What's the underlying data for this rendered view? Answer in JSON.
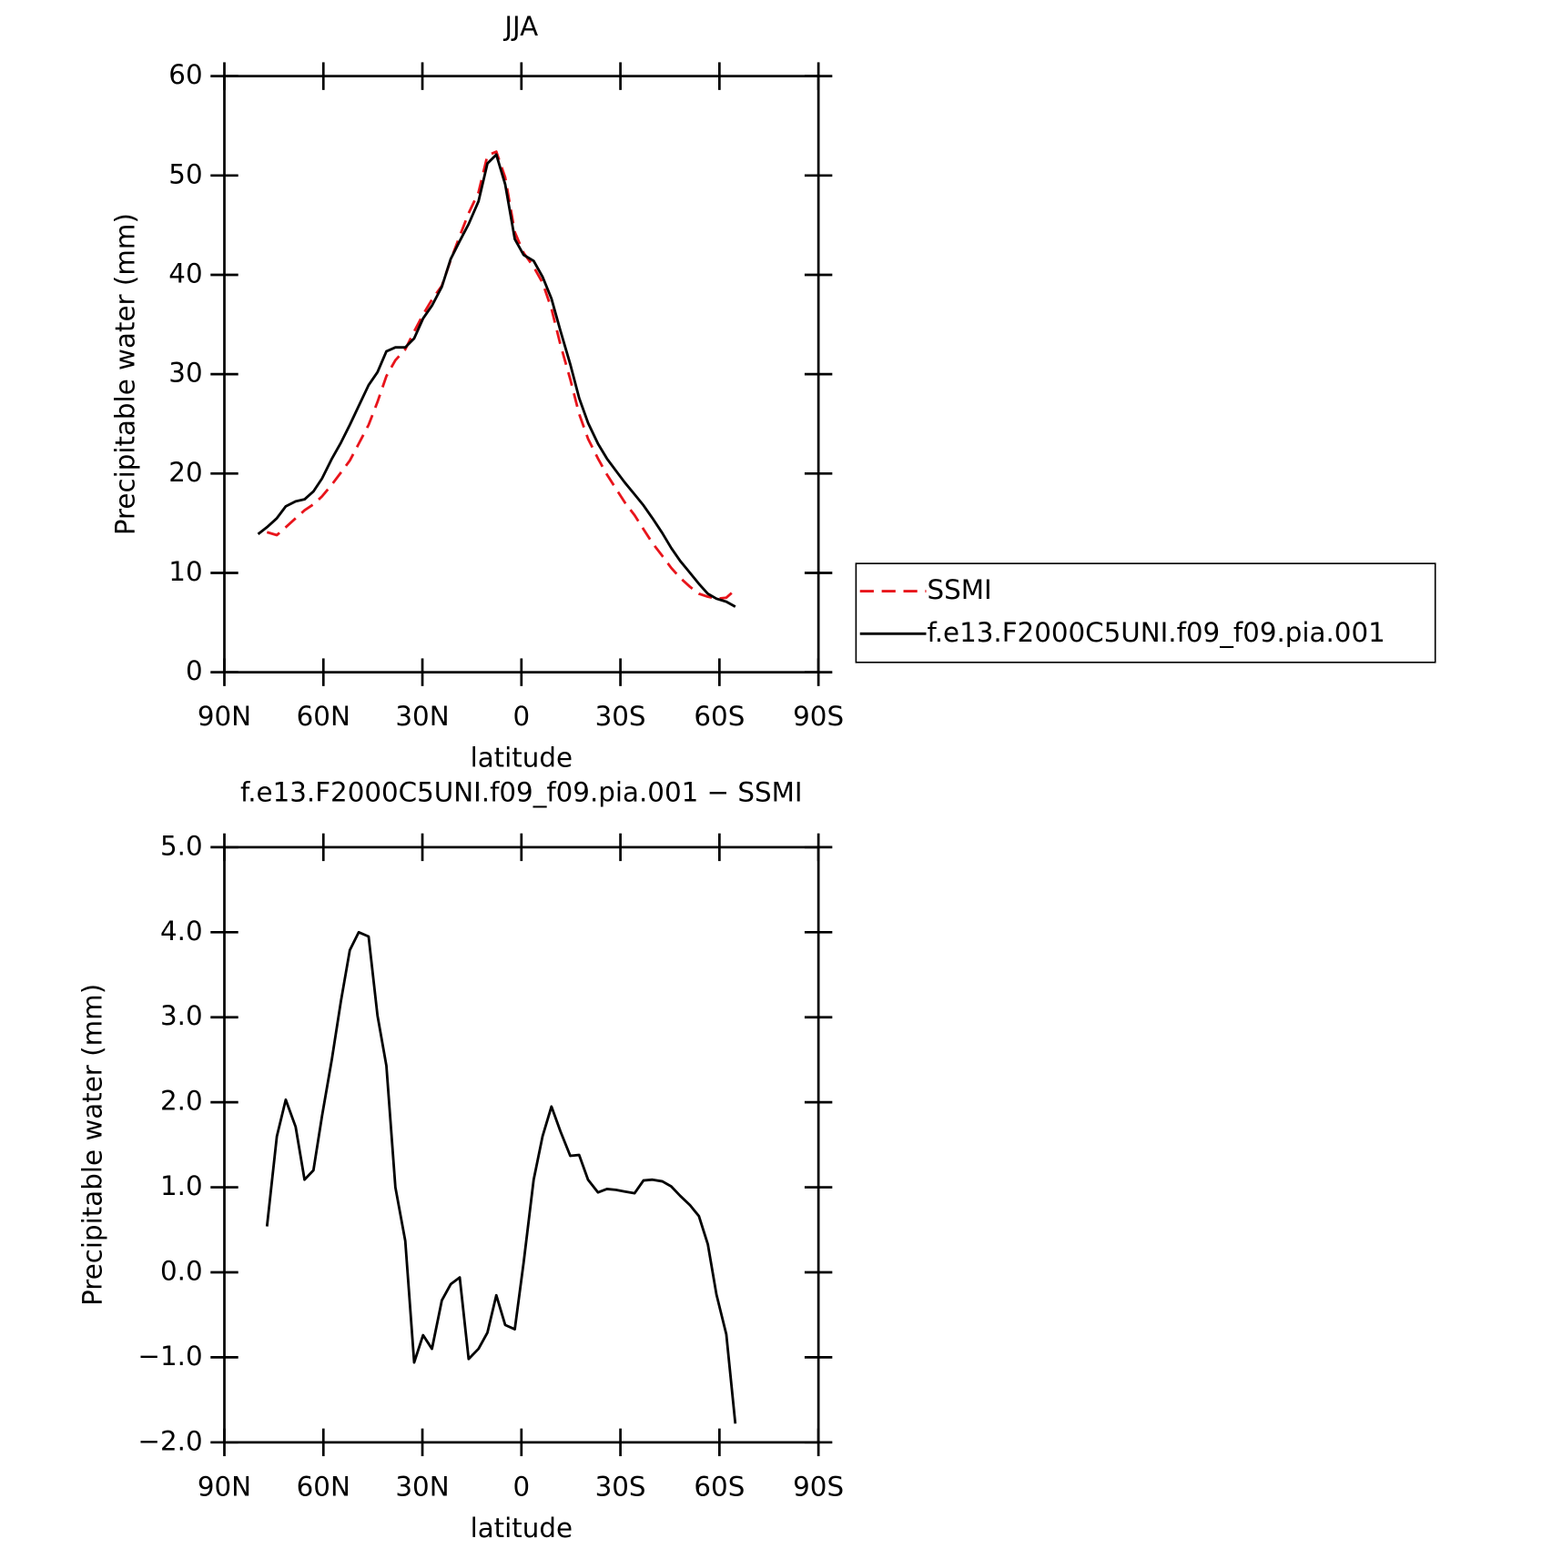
{
  "chart_data": [
    {
      "type": "line",
      "title": "JJA",
      "xlabel": "latitude",
      "ylabel": "Precipitable water (mm)",
      "xlim": [
        90,
        -90
      ],
      "xticks": [
        {
          "value": 90,
          "label": "90N"
        },
        {
          "value": 60,
          "label": "60N"
        },
        {
          "value": 30,
          "label": "30N"
        },
        0,
        {
          "value": -30,
          "label": "30S"
        },
        {
          "value": -60,
          "label": "60S"
        },
        {
          "value": -90,
          "label": "90S"
        }
      ],
      "ylim": [
        0,
        60
      ],
      "yticks": [
        0,
        10,
        20,
        30,
        40,
        50,
        60
      ],
      "legend": "right",
      "x": [
        79.8,
        77.1,
        74.1,
        71.4,
        68.4,
        65.7,
        63.0,
        60.4,
        57.4,
        54.7,
        52.0,
        49.3,
        46.3,
        43.6,
        40.9,
        38.2,
        35.2,
        32.5,
        29.8,
        27.1,
        24.1,
        21.4,
        18.7,
        16.0,
        13.0,
        10.3,
        7.6,
        4.9,
        2.0,
        -0.7,
        -3.7,
        -6.4,
        -9.1,
        -11.8,
        -14.8,
        -17.5,
        -20.2,
        -23.2,
        -25.9,
        -28.6,
        -31.3,
        -34.3,
        -37.0,
        -39.7,
        -42.7,
        -45.4,
        -48.1,
        -51.1,
        -53.8,
        -56.5,
        -59.1,
        -62.1,
        -64.8
      ],
      "series": [
        {
          "name": "SSMI",
          "color": "#e8141b",
          "dashed": true,
          "values": [
            null,
            14.1,
            13.8,
            14.6,
            15.5,
            16.3,
            16.9,
            17.7,
            18.9,
            20.1,
            21.3,
            23.0,
            24.9,
            27.2,
            29.8,
            31.4,
            32.5,
            34.3,
            36.0,
            37.5,
            38.9,
            41.5,
            43.9,
            46.2,
            48.3,
            52.0,
            52.4,
            49.8,
            44.3,
            42.2,
            40.8,
            39.2,
            36.6,
            33.0,
            29.5,
            26.0,
            23.5,
            21.5,
            19.9,
            18.5,
            17.1,
            15.8,
            14.4,
            13.0,
            11.7,
            10.5,
            9.5,
            8.6,
            7.9,
            7.6,
            7.4,
            7.5,
            8.3
          ]
        },
        {
          "name": "f.e13.F2000C5UNI.f09_f09.pia.001",
          "color": "#000000",
          "dashed": false,
          "values": [
            13.9,
            14.6,
            15.5,
            16.7,
            17.2,
            17.4,
            18.2,
            19.5,
            21.5,
            23.1,
            24.9,
            26.8,
            28.9,
            30.2,
            32.3,
            32.7,
            32.7,
            33.6,
            35.6,
            36.9,
            38.8,
            41.6,
            43.4,
            45.1,
            47.4,
            51.2,
            52.1,
            49.1,
            43.6,
            42.0,
            41.4,
            39.8,
            37.6,
            34.4,
            31.0,
            27.6,
            25.1,
            23.0,
            21.5,
            20.3,
            19.1,
            17.9,
            16.8,
            15.5,
            14.0,
            12.5,
            11.2,
            10.0,
            8.9,
            7.9,
            7.4,
            7.1,
            6.6
          ]
        }
      ]
    },
    {
      "type": "line",
      "title": "f.e13.F2000C5UNI.f09_f09.pia.001  −  SSMI",
      "xlabel": "latitude",
      "ylabel": "Precipitable water (mm)",
      "xlim": [
        90,
        -90
      ],
      "xticks": [
        {
          "value": 90,
          "label": "90N"
        },
        {
          "value": 60,
          "label": "60N"
        },
        {
          "value": 30,
          "label": "30N"
        },
        0,
        {
          "value": -30,
          "label": "30S"
        },
        {
          "value": -60,
          "label": "60S"
        },
        {
          "value": -90,
          "label": "90S"
        }
      ],
      "ylim": [
        -2,
        5
      ],
      "yticks": [
        {
          "value": -2,
          "label": "−2.0"
        },
        {
          "value": -1,
          "label": "−1.0"
        },
        {
          "value": 0,
          "label": "0.0"
        },
        {
          "value": 1,
          "label": "1.0"
        },
        {
          "value": 2,
          "label": "2.0"
        },
        {
          "value": 3,
          "label": "3.0"
        },
        {
          "value": 4,
          "label": "4.0"
        },
        {
          "value": 5,
          "label": "5.0"
        }
      ],
      "x": [
        77.1,
        74.1,
        71.4,
        68.4,
        65.7,
        63.0,
        60.4,
        57.4,
        54.7,
        52.0,
        49.3,
        46.3,
        43.6,
        40.9,
        38.2,
        35.2,
        32.5,
        29.8,
        27.1,
        24.1,
        21.4,
        18.7,
        16.0,
        13.0,
        10.3,
        7.6,
        4.9,
        2.0,
        -0.7,
        -3.7,
        -6.4,
        -9.1,
        -11.8,
        -14.8,
        -17.5,
        -20.2,
        -23.2,
        -25.9,
        -28.6,
        -31.3,
        -34.3,
        -37.0,
        -39.7,
        -42.7,
        -45.4,
        -48.1,
        -51.1,
        -53.8,
        -56.5,
        -59.1,
        -62.1,
        -64.8
      ],
      "series": [
        {
          "color": "#000000",
          "dashed": false,
          "values": [
            0.54,
            1.6,
            2.03,
            1.71,
            1.09,
            1.2,
            1.84,
            2.51,
            3.19,
            3.79,
            4.0,
            3.95,
            3.02,
            2.43,
            1.0,
            0.37,
            -1.06,
            -0.74,
            -0.9,
            -0.33,
            -0.14,
            -0.06,
            -1.02,
            -0.9,
            -0.71,
            -0.27,
            -0.62,
            -0.67,
            0.12,
            1.09,
            1.6,
            1.95,
            1.66,
            1.37,
            1.38,
            1.09,
            0.94,
            0.98,
            0.97,
            0.95,
            0.93,
            1.08,
            1.09,
            1.07,
            1.01,
            0.9,
            0.79,
            0.66,
            0.33,
            -0.26,
            -0.73,
            -1.78
          ]
        }
      ]
    }
  ]
}
